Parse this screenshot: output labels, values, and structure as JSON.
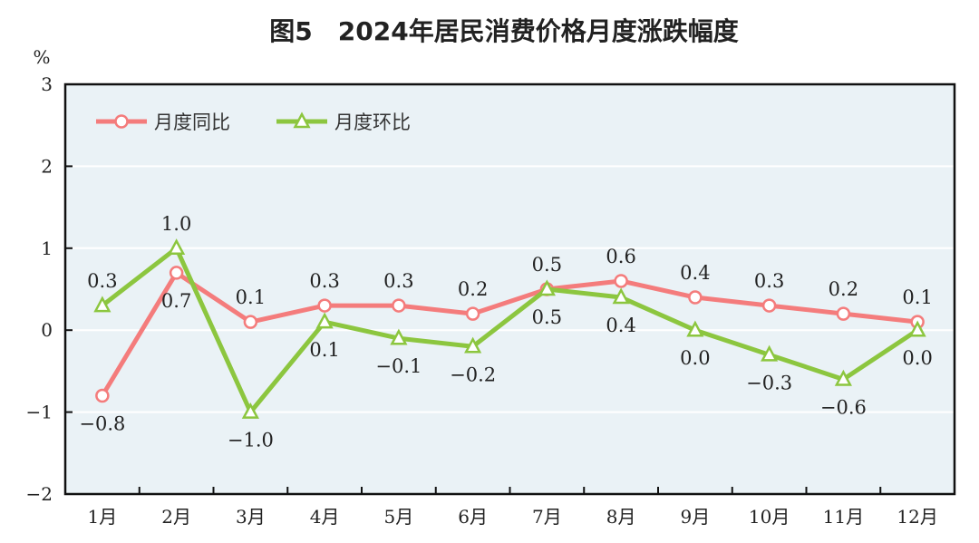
{
  "chart_data": {
    "type": "line",
    "title": "图5　2024年居民消费价格月度涨跌幅度",
    "ylabel": "%",
    "xlabel": "",
    "categories": [
      "1月",
      "2月",
      "3月",
      "4月",
      "5月",
      "6月",
      "7月",
      "8月",
      "9月",
      "10月",
      "11月",
      "12月"
    ],
    "ylim": [
      -2,
      3
    ],
    "yticks": [
      -2,
      -1,
      0,
      1,
      2,
      3
    ],
    "grid": true,
    "legend_placement": "top-left",
    "background": "#eaf2f6",
    "series": [
      {
        "name": "月度同比",
        "marker": "circle",
        "color": "#f47c7c",
        "values": [
          -0.8,
          0.7,
          0.1,
          0.3,
          0.3,
          0.2,
          0.5,
          0.6,
          0.4,
          0.3,
          0.2,
          0.1
        ],
        "labels": [
          "-0.8",
          "0.7",
          "0.1",
          "0.3",
          "0.3",
          "0.2",
          "0.5",
          "0.6",
          "0.4",
          "0.3",
          "0.2",
          "0.1"
        ]
      },
      {
        "name": "月度环比",
        "marker": "triangle",
        "color": "#8cc63f",
        "values": [
          0.3,
          1.0,
          -1.0,
          0.1,
          -0.1,
          -0.2,
          0.5,
          0.4,
          0.0,
          -0.3,
          -0.6,
          0.0
        ],
        "labels": [
          "0.3",
          "1.0",
          "-1.0",
          "0.1",
          "-0.1",
          "-0.2",
          "0.5",
          "0.4",
          "0.0",
          "-0.3",
          "-0.6",
          "0.0"
        ]
      }
    ]
  }
}
